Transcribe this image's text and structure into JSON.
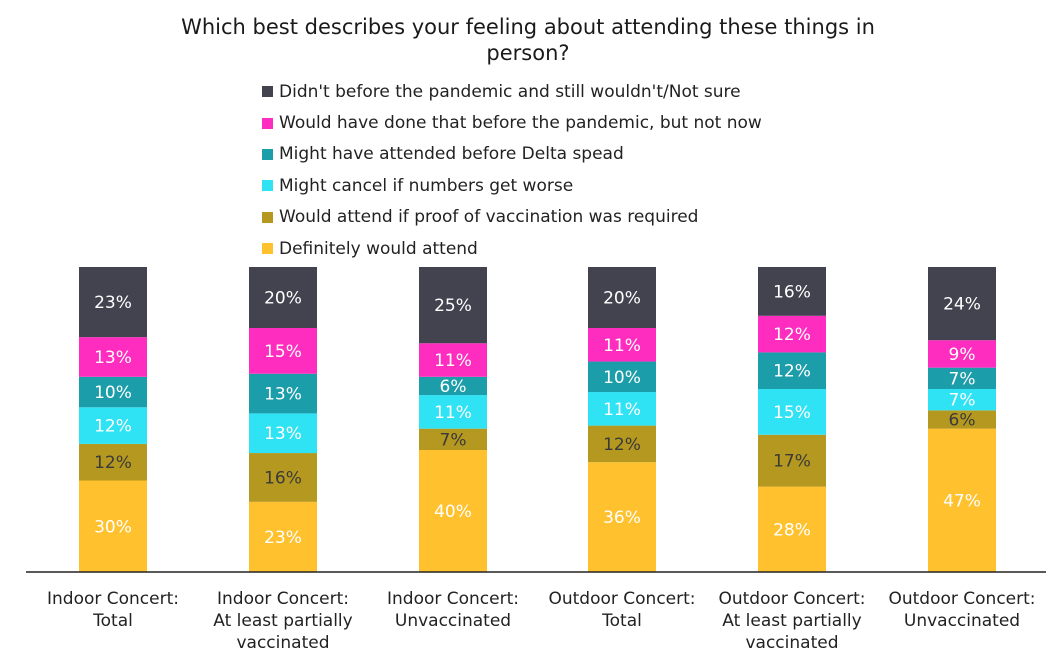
{
  "chart_data": {
    "type": "bar",
    "stacked": true,
    "title_lines": [
      "Which best describes your feeling about attending these things in",
      "person?"
    ],
    "categories": [
      [
        "Indoor Concert:",
        "Total"
      ],
      [
        "Indoor Concert:",
        "At least partially",
        "vaccinated"
      ],
      [
        "Indoor Concert:",
        "Unvaccinated"
      ],
      [
        "Outdoor Concert:",
        "Total"
      ],
      [
        "Outdoor Concert:",
        "At least partially",
        "vaccinated"
      ],
      [
        "Outdoor Concert:",
        "Unvaccinated"
      ]
    ],
    "legend_order": [
      5,
      4,
      3,
      2,
      1,
      0
    ],
    "series": [
      {
        "name": "Definitely would attend",
        "color": "#FFC12E",
        "values": [
          30,
          23,
          40,
          36,
          28,
          47
        ]
      },
      {
        "name": "Would attend if proof of vaccination was required",
        "color": "#B5981F",
        "values": [
          12,
          16,
          7,
          12,
          17,
          6
        ]
      },
      {
        "name": "Might cancel if numbers get worse",
        "color": "#2FE3F5",
        "values": [
          12,
          13,
          11,
          11,
          15,
          7
        ]
      },
      {
        "name": "Might have attended before Delta spead",
        "color": "#1C9DAA",
        "values": [
          10,
          13,
          6,
          10,
          12,
          7
        ]
      },
      {
        "name": "Would have done that before the pandemic, but not now",
        "color": "#FF2DBF",
        "values": [
          13,
          15,
          11,
          11,
          12,
          9
        ]
      },
      {
        "name": "Didn't before the pandemic and still wouldn't/Not sure",
        "color": "#434350",
        "values": [
          23,
          20,
          25,
          20,
          16,
          24
        ]
      }
    ],
    "data_labels": [
      [
        "30%",
        "12%",
        "12%",
        "10%",
        "13%",
        "23%"
      ],
      [
        "23%",
        "16%",
        "13%",
        "13%",
        "15%",
        "20%"
      ],
      [
        "40%",
        "7%",
        "11%",
        "6%",
        "11%",
        "25%"
      ],
      [
        "36%",
        "12%",
        "11%",
        "10%",
        "11%",
        "20%"
      ],
      [
        "28%",
        "17%",
        "15%",
        "12%",
        "12%",
        "16%"
      ],
      [
        "47%",
        "6%",
        "7%",
        "7%",
        "9%",
        "24%"
      ]
    ],
    "ylim": [
      0,
      100
    ],
    "legend_position": "top",
    "grid": false
  }
}
